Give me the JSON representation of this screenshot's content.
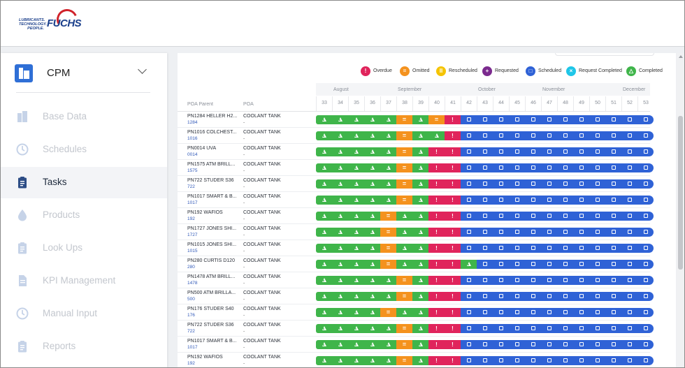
{
  "brand": {
    "tagline_1": "LUBRICANTS.",
    "tagline_2": "TECHNOLOGY.",
    "tagline_3": "PEOPLE.",
    "name": "FUCHS"
  },
  "sidebar": {
    "module": "CPM",
    "items": [
      {
        "label": "Base Data",
        "icon": "building-icon",
        "active": false
      },
      {
        "label": "Schedules",
        "icon": "clock-icon",
        "active": false
      },
      {
        "label": "Tasks",
        "icon": "clipboard-icon",
        "active": true
      },
      {
        "label": "Products",
        "icon": "drop-icon",
        "active": false
      },
      {
        "label": "Look Ups",
        "icon": "clipboard-icon",
        "active": false
      },
      {
        "label": "KPI Management",
        "icon": "document-icon",
        "active": false
      },
      {
        "label": "Manual Input",
        "icon": "clock-icon",
        "active": false
      },
      {
        "label": "Reports",
        "icon": "clipboard-icon",
        "active": false
      }
    ]
  },
  "legend": [
    {
      "label": "Overdue",
      "color": "#e0245c",
      "glyph": "!"
    },
    {
      "label": "Omitted",
      "color": "#f4921e",
      "glyph": "="
    },
    {
      "label": "Rescheduled",
      "color": "#f5c400",
      "glyph": "II"
    },
    {
      "label": "Requested",
      "color": "#7b2a8e",
      "glyph": "+"
    },
    {
      "label": "Scheduled",
      "color": "#2f62d6",
      "glyph": "□"
    },
    {
      "label": "Request Completed",
      "color": "#1fc6e8",
      "glyph": "×"
    },
    {
      "label": "Completed",
      "color": "#3fb54a",
      "glyph": "△"
    }
  ],
  "table": {
    "col_poa_parent": "POA Parent",
    "col_poa": "POA",
    "months": [
      {
        "label": "August",
        "week": 34
      },
      {
        "label": "September",
        "week": 38
      },
      {
        "label": "October",
        "week": 43
      },
      {
        "label": "November",
        "week": 47
      },
      {
        "label": "December",
        "week": 52
      }
    ],
    "weeks": [
      33,
      34,
      35,
      36,
      37,
      38,
      39,
      40,
      41,
      42,
      43,
      44,
      45,
      46,
      47,
      48,
      49,
      50,
      51,
      52,
      53
    ],
    "rows": [
      {
        "parent": "PN1284 HELLER H2...",
        "id": "1284",
        "poa": "COOLANT TANK",
        "sub": "-",
        "cells": "CCCCCOCOXSSSSSSSSSSSS"
      },
      {
        "parent": "PN1016 COLCHEST...",
        "id": "1016",
        "poa": "COOLANT TANK",
        "sub": "-",
        "cells": "CCCCCOCCXSSSSSSSSSSSS"
      },
      {
        "parent": "PN0014 UVA",
        "id": "0014",
        "poa": "COOLANT TANK",
        "sub": "-",
        "cells": "CCCCCOCXXSSSSSSSSSSSS"
      },
      {
        "parent": "PN1575 ATM BRILL...",
        "id": "1575",
        "poa": "COOLANT TANK",
        "sub": "-",
        "cells": "CCCCCOCXXSSSSSSSSSSSS"
      },
      {
        "parent": "PN722 STUDER S36",
        "id": "722",
        "poa": "COOLANT TANK",
        "sub": "-",
        "cells": "CCCCCOCXXSSSSSSSSSSSS"
      },
      {
        "parent": "PN1017 SMART & B...",
        "id": "1017",
        "poa": "COOLANT TANK",
        "sub": "-",
        "cells": "CCCCCOCXXSSSSSSSSSSSS"
      },
      {
        "parent": "PN192 WAFIOS",
        "id": "192",
        "poa": "COOLANT TANK",
        "sub": "-",
        "cells": "CCCCOCCXXSSSSSSSSSSSS"
      },
      {
        "parent": "PN1727 JONES SHI...",
        "id": "1727",
        "poa": "COOLANT TANK",
        "sub": "-",
        "cells": "CCCCOCCXXSSSSSSSSSSSS"
      },
      {
        "parent": "PN1015 JONES SHI...",
        "id": "1015",
        "poa": "COOLANT TANK",
        "sub": "-",
        "cells": "CCCCOCCXXSSSSSSSSSSSS"
      },
      {
        "parent": "PN280 CURTIS D120",
        "id": "280",
        "poa": "COOLANT TANK",
        "sub": "-",
        "cells": "CCCCOCCXXCSSSSSSSSSSS"
      },
      {
        "parent": "PN1478 ATM BRILL...",
        "id": "1478",
        "poa": "COOLANT TANK",
        "sub": "-",
        "cells": "CCCCCOCXXSSSSSSSSSSSS"
      },
      {
        "parent": "PN500 ATM BRILLA...",
        "id": "500",
        "poa": "COOLANT TANK",
        "sub": "-",
        "cells": "CCCCCOCXXSSSSSSSSSSSS"
      },
      {
        "parent": "PN176 STUDER S40",
        "id": "176",
        "poa": "COOLANT TANK",
        "sub": "-",
        "cells": "CCCCOCCXXSSSSSSSSSSSS"
      },
      {
        "parent": "PN722 STUDER S36",
        "id": "722",
        "poa": "COOLANT TANK",
        "sub": "-",
        "cells": "CCCCCOCXXSSSSSSSSSSSS"
      },
      {
        "parent": "PN1017 SMART & B...",
        "id": "1017",
        "poa": "COOLANT TANK",
        "sub": "-",
        "cells": "CCCCCOCXXSSSSSSSSSSSS"
      },
      {
        "parent": "PN192 WAFIOS",
        "id": "192",
        "poa": "COOLANT TANK",
        "sub": "-",
        "cells": "CCCCCOCXXSSSSSSSSSSSS"
      }
    ]
  }
}
